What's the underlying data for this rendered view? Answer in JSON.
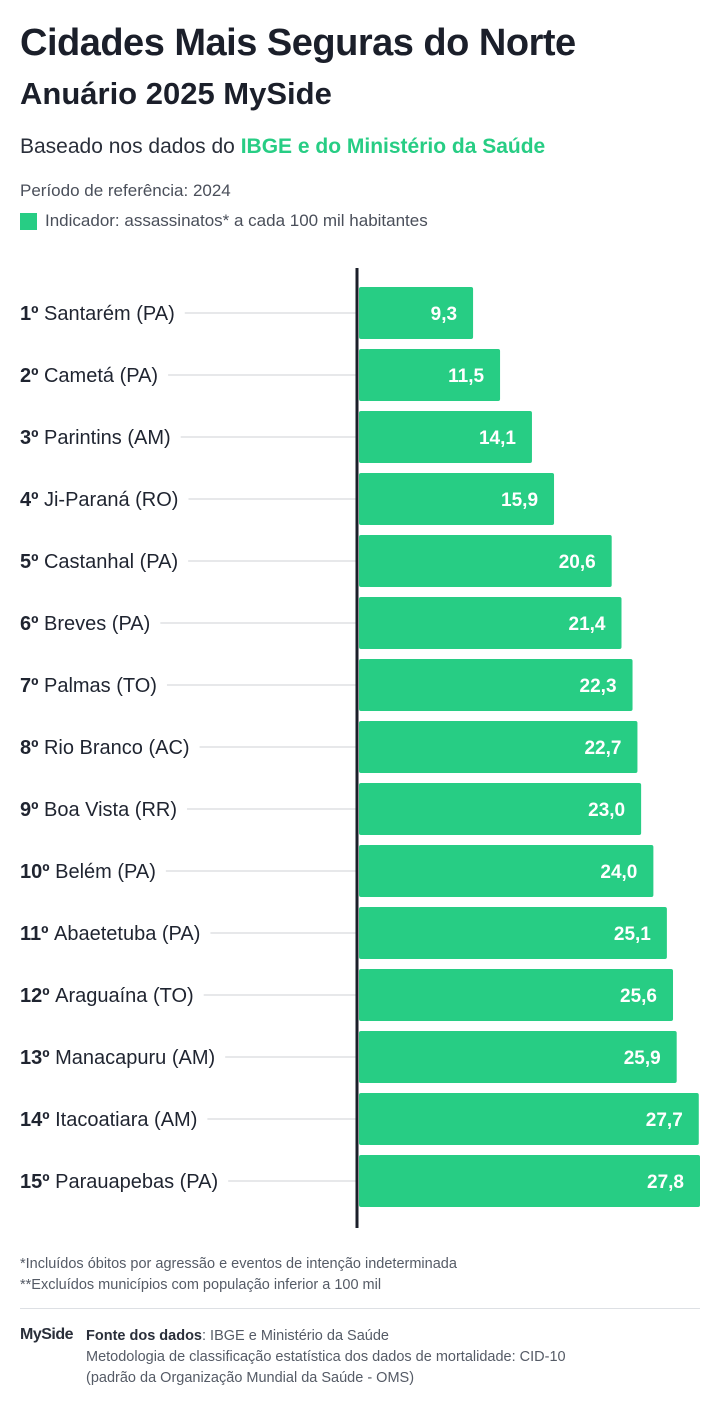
{
  "header": {
    "title": "Cidades Mais Seguras do Norte",
    "subtitle": "Anuário 2025 MySide",
    "based_prefix": "Baseado nos dados do ",
    "based_highlight": "IBGE e do Ministério da Saúde",
    "period": "Período de referência: 2024",
    "indicator": "Indicador: assassinatos* a cada 100 mil habitantes"
  },
  "colors": {
    "bar": "#27cd84",
    "axis": "#1b1f2a",
    "leader": "#cfd2d6",
    "text": "#1f2430"
  },
  "chart_data": {
    "type": "bar",
    "orientation": "horizontal",
    "categories": [
      "Santarém (PA)",
      "Cametá (PA)",
      "Parintins (AM)",
      "Ji-Paraná (RO)",
      "Castanhal (PA)",
      "Breves (PA)",
      "Palmas (TO)",
      "Rio Branco (AC)",
      "Boa Vista (RR)",
      "Belém (PA)",
      "Abaetetuba (PA)",
      "Araguaína (TO)",
      "Manacapuru (AM)",
      "Itacoatiara (AM)",
      "Parauapebas (PA)"
    ],
    "ranks": [
      "1º",
      "2º",
      "3º",
      "4º",
      "5º",
      "6º",
      "7º",
      "8º",
      "9º",
      "10º",
      "11º",
      "12º",
      "13º",
      "14º",
      "15º"
    ],
    "values": [
      9.3,
      11.5,
      14.1,
      15.9,
      20.6,
      21.4,
      22.3,
      22.7,
      23.0,
      24.0,
      25.1,
      25.6,
      25.9,
      27.7,
      27.8
    ],
    "value_labels": [
      "9,3",
      "11,5",
      "14,1",
      "15,9",
      "20,6",
      "21,4",
      "22,3",
      "22,7",
      "23,0",
      "24,0",
      "25,1",
      "25,6",
      "25,9",
      "27,7",
      "27,8"
    ],
    "xlim": [
      0,
      27.8
    ],
    "grid": false,
    "legend": "none"
  },
  "footnotes": {
    "note1": "*Incluídos óbitos por agressão e eventos de intenção indeterminada",
    "note2": "**Excluídos municípios com população inferior a 100 mil"
  },
  "footer": {
    "logo": "MySide",
    "source_label": "Fonte dos dados",
    "source_text": ": IBGE e Ministério da Saúde",
    "method1": "Metodologia de classificação estatística dos dados de mortalidade: CID-10",
    "method2": "(padrão da Organização Mundial da Saúde - OMS)"
  }
}
